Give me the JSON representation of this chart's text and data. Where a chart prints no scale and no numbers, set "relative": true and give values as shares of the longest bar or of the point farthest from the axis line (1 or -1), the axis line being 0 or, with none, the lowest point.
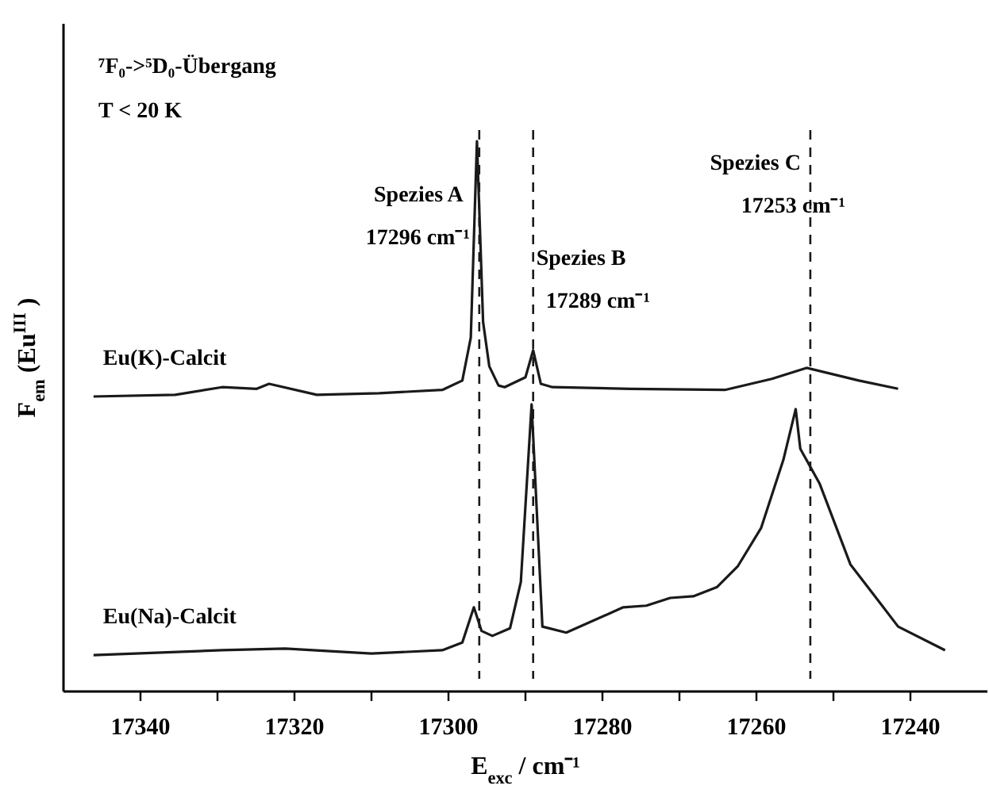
{
  "chart_data": {
    "type": "line",
    "relative": true,
    "xlabel": "E$_{exc}$ / cm⁻¹",
    "ylabel": "F$_{em}$ (Eu$^{III}$)",
    "xlim": [
      17350,
      17230
    ],
    "xticks": [
      17340,
      17320,
      17300,
      17280,
      17260,
      17240,
      {
        "value": 17330,
        "label": null
      },
      {
        "value": 17310,
        "label": null
      },
      {
        "value": 17290,
        "label": null
      },
      {
        "value": 17270,
        "label": null
      },
      {
        "value": 17250,
        "label": null
      }
    ],
    "grid": false,
    "legend": false,
    "marker": "none",
    "line_style": "solid",
    "series": [
      {
        "name": "Eu(K)-Calcit",
        "color": "#1a1a1a",
        "x": [
          17346.1,
          17335.5,
          17329.4,
          17324.9,
          17323.3,
          17317.1,
          17309,
          17300.8,
          17298.2,
          17297.1,
          17296.3,
          17295.5,
          17294.7,
          17293.5,
          17292.7,
          17290,
          17289,
          17288,
          17286.5,
          17276.3,
          17264.1,
          17258,
          17253.5,
          17246.7,
          17241.6
        ],
        "values": [
          0.536,
          0.539,
          0.553,
          0.55,
          0.559,
          0.539,
          0.542,
          0.548,
          0.565,
          0.643,
          1.0,
          0.671,
          0.591,
          0.556,
          0.553,
          0.571,
          0.62,
          0.559,
          0.553,
          0.55,
          0.548,
          0.568,
          0.588,
          0.565,
          0.55
        ]
      },
      {
        "name": "Eu(Na)-Calcit",
        "color": "#1a1a1a",
        "x": [
          17346.1,
          17329.4,
          17321.2,
          17310,
          17300.8,
          17298.2,
          17296.7,
          17295.7,
          17294.3,
          17292,
          17290.6,
          17289.2,
          17287.8,
          17284.7,
          17277.3,
          17274.3,
          17271.2,
          17268.2,
          17265.1,
          17262.4,
          17259.4,
          17256.5,
          17254.9,
          17254.3,
          17251.8,
          17247.8,
          17245.1,
          17241.6,
          17235.5
        ],
        "values": [
          0.066,
          0.075,
          0.078,
          0.069,
          0.075,
          0.089,
          0.153,
          0.11,
          0.101,
          0.115,
          0.199,
          0.522,
          0.118,
          0.107,
          0.153,
          0.156,
          0.17,
          0.173,
          0.19,
          0.228,
          0.297,
          0.421,
          0.513,
          0.441,
          0.378,
          0.231,
          0.182,
          0.118,
          0.075
        ]
      }
    ],
    "ref_lines": [
      {
        "axis": "x",
        "value": 17296,
        "label": "Spezies A",
        "line_style": "dashed",
        "color": "#1a1a1a"
      },
      {
        "axis": "x",
        "value": 17289,
        "label": "Spezies B",
        "line_style": "dashed",
        "color": "#1a1a1a"
      },
      {
        "axis": "x",
        "value": 17253,
        "label": "Spezies C",
        "line_style": "dashed",
        "color": "#1a1a1a"
      }
    ],
    "annotations": [
      "⁷F₀->⁵D₀-Übergang",
      "T < 20 K",
      {
        "text": "17296 cm⁻¹",
        "x": 17296
      },
      {
        "text": "17289 cm⁻¹",
        "x": 17289
      },
      {
        "text": "17253 cm⁻¹",
        "x": 17253
      }
    ]
  }
}
